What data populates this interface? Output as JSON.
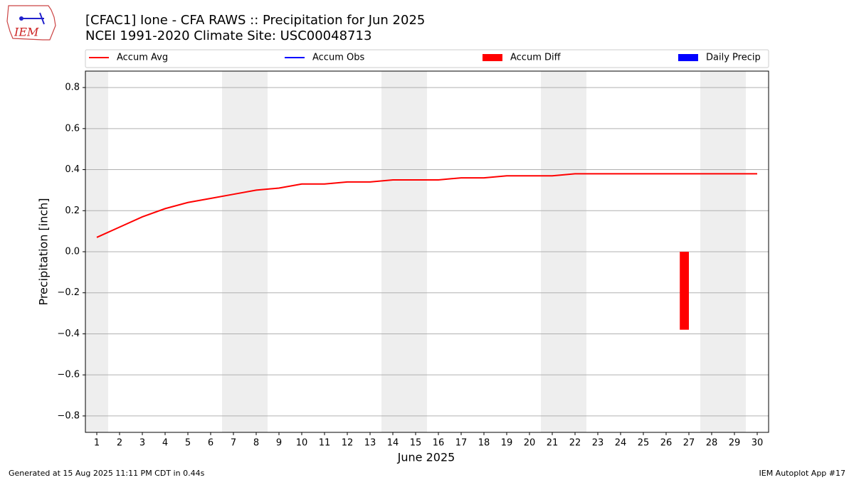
{
  "logo": "IEM",
  "footer_left": "Generated at 15 Aug 2025 11:11 PM CDT in 0.44s",
  "footer_right": "IEM Autoplot App #17",
  "chart_data": {
    "type": "line",
    "title": "[CFAC1] Ione - CFA RAWS :: Precipitation for Jun 2025",
    "subtitle": "NCEI 1991-2020 Climate Site: USC00048713",
    "x_label": "June 2025",
    "y_label": "Precipitation [inch]",
    "categories": [
      "1",
      "2",
      "3",
      "4",
      "5",
      "6",
      "7",
      "8",
      "9",
      "10",
      "11",
      "12",
      "13",
      "14",
      "15",
      "16",
      "17",
      "18",
      "19",
      "20",
      "21",
      "22",
      "23",
      "24",
      "25",
      "26",
      "27",
      "28",
      "29",
      "30"
    ],
    "series": [
      {
        "name": "Accum Avg",
        "type": "line",
        "color": "#ff0000",
        "values": [
          0.07,
          0.12,
          0.17,
          0.21,
          0.24,
          0.26,
          0.28,
          0.3,
          0.31,
          0.33,
          0.33,
          0.34,
          0.34,
          0.35,
          0.35,
          0.35,
          0.36,
          0.36,
          0.37,
          0.37,
          0.37,
          0.38,
          0.38,
          0.38,
          0.38,
          0.38,
          0.38,
          0.38,
          0.38,
          0.38
        ]
      },
      {
        "name": "Accum Obs",
        "type": "line",
        "color": "#0000ff",
        "values": [
          null,
          null,
          null,
          null,
          null,
          null,
          null,
          null,
          null,
          null,
          null,
          null,
          null,
          null,
          null,
          null,
          null,
          null,
          null,
          null,
          null,
          null,
          null,
          null,
          null,
          null,
          null,
          null,
          null,
          null
        ]
      },
      {
        "name": "Accum Diff",
        "type": "bar",
        "color": "#ff0000",
        "values": [
          null,
          null,
          null,
          null,
          null,
          null,
          null,
          null,
          null,
          null,
          null,
          null,
          null,
          null,
          null,
          null,
          null,
          null,
          null,
          null,
          null,
          null,
          null,
          null,
          null,
          null,
          -0.38,
          null,
          null,
          null
        ]
      },
      {
        "name": "Daily Precip",
        "type": "bar",
        "color": "#0000ff",
        "values": [
          null,
          null,
          null,
          null,
          null,
          null,
          null,
          null,
          null,
          null,
          null,
          null,
          null,
          null,
          null,
          null,
          null,
          null,
          null,
          null,
          null,
          null,
          null,
          null,
          null,
          null,
          null,
          null,
          null,
          null
        ]
      }
    ],
    "ylim": [
      -0.88,
      0.88
    ],
    "yticks": [
      {
        "value": -0.8,
        "label": "−0.8"
      },
      {
        "value": -0.6,
        "label": "−0.6"
      },
      {
        "value": -0.4,
        "label": "−0.4"
      },
      {
        "value": -0.2,
        "label": "−0.2"
      },
      {
        "value": 0,
        "label": "0.0"
      },
      0.2,
      0.4,
      0.6,
      0.8
    ],
    "grid": true
  }
}
